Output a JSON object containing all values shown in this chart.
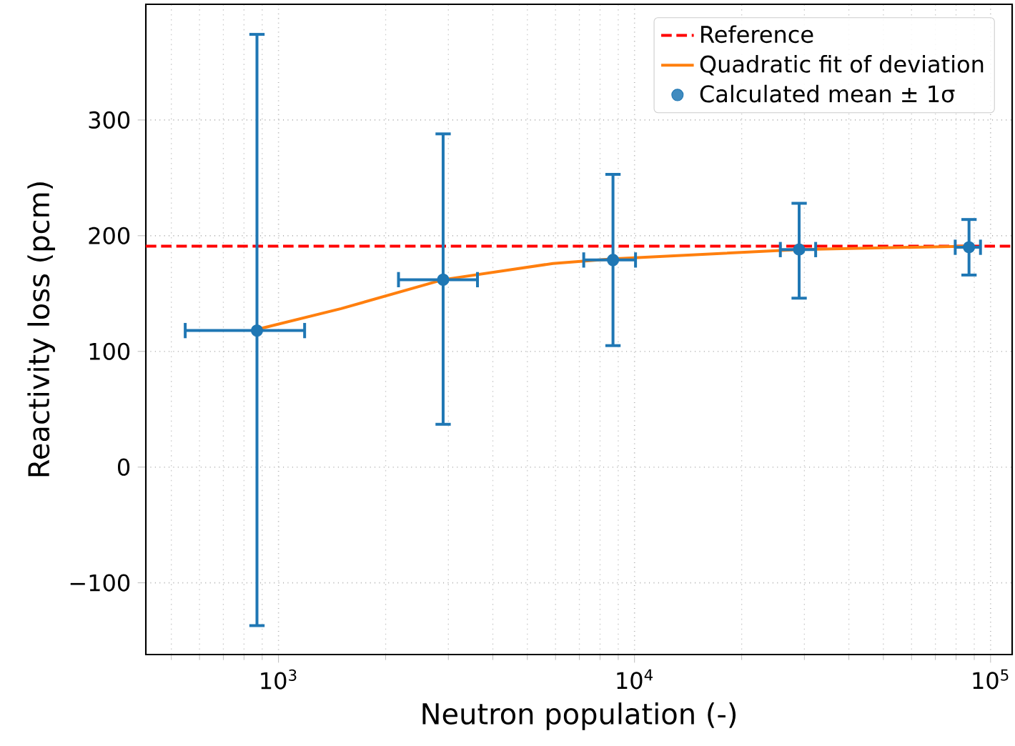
{
  "chart_data": {
    "type": "scatter",
    "xlabel": "Neutron population (-)",
    "ylabel": "Reactivity loss (pcm)",
    "log": "x",
    "xlim": [
      424,
      115000
    ],
    "ylim": [
      -162,
      400
    ],
    "xticks": [
      {
        "value": 1000,
        "label": "10$^{3}$"
      },
      {
        "value": 10000,
        "label": "10$^{4}$"
      },
      {
        "value": 100000,
        "label": "10$^{5}$"
      }
    ],
    "yticks": [
      {
        "value": -100,
        "label": "−100"
      },
      0,
      100,
      200,
      300
    ],
    "grid": true,
    "legend": "top right",
    "ref_lines": [
      {
        "axis": "y",
        "value": 191,
        "label": "Reference",
        "color": "#ff0000",
        "line_style": "dashed"
      }
    ],
    "series": [
      {
        "name": "Quadratic fit of deviation",
        "type": "line",
        "color": "#ff7f0e",
        "marker": "none",
        "line_style": "solid",
        "x": [
          870,
          1500,
          2900,
          5900,
          8700,
          29000,
          87000
        ],
        "values": [
          119,
          137,
          162,
          176,
          180,
          188,
          191
        ]
      },
      {
        "name": "Calculated mean ± 1σ",
        "color": "#1f77b4",
        "marker": "circle",
        "x": [
          870,
          2900,
          8700,
          29000,
          87000
        ],
        "values": [
          118,
          162,
          179,
          188,
          190
        ],
        "errors": [
          [
            -137,
            374
          ],
          [
            37,
            288
          ],
          [
            105,
            253
          ],
          [
            146,
            228
          ],
          [
            166,
            214
          ]
        ],
        "xerrors": [
          [
            547,
            1184
          ],
          [
            2173,
            3622
          ],
          [
            7200,
            10065
          ],
          [
            25680,
            32270
          ],
          [
            79600,
            93700
          ]
        ]
      }
    ]
  }
}
